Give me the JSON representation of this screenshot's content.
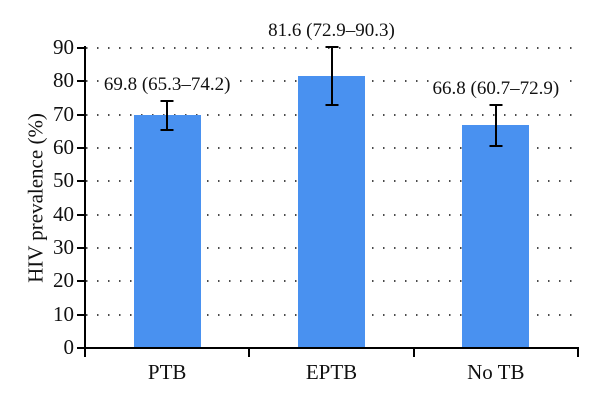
{
  "chart_data": {
    "type": "bar",
    "title": "",
    "xlabel": "",
    "ylabel": "HIV prevalence (%)",
    "categories": [
      "PTB",
      "EPTB",
      "No TB"
    ],
    "values": [
      69.8,
      81.6,
      66.8
    ],
    "error_low": [
      65.3,
      72.9,
      60.7
    ],
    "error_high": [
      74.2,
      90.3,
      72.9
    ],
    "annotations": [
      "69.8 (65.3–74.2)",
      "81.6 (72.9–90.3)",
      "66.8 (60.7–72.9)"
    ],
    "ylim": [
      0,
      90
    ],
    "yticks": [
      0,
      10,
      20,
      30,
      40,
      50,
      60,
      70,
      80,
      90
    ],
    "grid": "horizontal-dotted",
    "legend": null,
    "colors": {
      "bar_fill": "#4991f0",
      "axis": "#000000",
      "grid_dot": "#4a4a4a",
      "text": "#111111",
      "background": "#ffffff"
    }
  }
}
